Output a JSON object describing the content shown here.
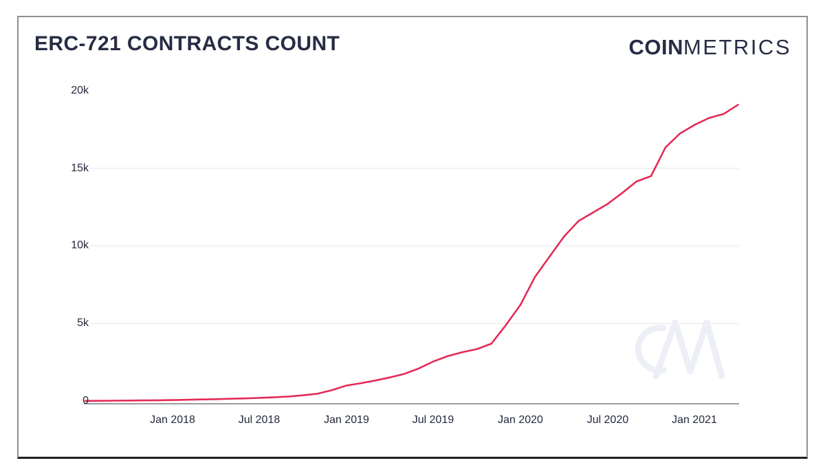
{
  "card": {
    "title": "ERC-721 CONTRACTS COUNT",
    "logo": {
      "bold": "COIN",
      "light": "METRICS"
    },
    "watermark": "CM"
  },
  "chart_data": {
    "type": "line",
    "title": "ERC-721 CONTRACTS COUNT",
    "series_name": "ERC-721 contracts count",
    "line_color": "#e42a56",
    "grid": "horizontal",
    "legend": "none",
    "ylim": [
      0,
      20000
    ],
    "y_tick_labels": [
      "20k",
      "15k",
      "10k",
      "5k",
      "0"
    ],
    "y_tick_values": [
      20000,
      15000,
      10000,
      5000,
      0
    ],
    "x_tick_labels": [
      "Jan 2018",
      "Jul 2018",
      "Jan 2019",
      "Jul 2019",
      "Jan 2020",
      "Jul 2020",
      "Jan 2021"
    ],
    "months": [
      "2017-07",
      "2017-08",
      "2017-09",
      "2017-10",
      "2017-11",
      "2017-12",
      "2018-01",
      "2018-02",
      "2018-03",
      "2018-04",
      "2018-05",
      "2018-06",
      "2018-07",
      "2018-08",
      "2018-09",
      "2018-10",
      "2018-11",
      "2018-12",
      "2019-01",
      "2019-02",
      "2019-03",
      "2019-04",
      "2019-05",
      "2019-06",
      "2019-07",
      "2019-08",
      "2019-09",
      "2019-10",
      "2019-11",
      "2019-12",
      "2020-01",
      "2020-02",
      "2020-03",
      "2020-04",
      "2020-05",
      "2020-06",
      "2020-07",
      "2020-08",
      "2020-09",
      "2020-10",
      "2020-11",
      "2020-12",
      "2021-01",
      "2021-02",
      "2021-03",
      "2021-04"
    ],
    "values": [
      10,
      15,
      20,
      30,
      40,
      50,
      60,
      80,
      100,
      120,
      145,
      170,
      200,
      240,
      290,
      370,
      470,
      700,
      1000,
      1150,
      1320,
      1520,
      1750,
      2100,
      2550,
      2900,
      3150,
      3350,
      3700,
      4900,
      6200,
      8000,
      9300,
      10600,
      11600,
      12150,
      12700,
      13400,
      14150,
      14500,
      16350,
      17250,
      17800,
      18250,
      18500,
      19100
    ]
  }
}
